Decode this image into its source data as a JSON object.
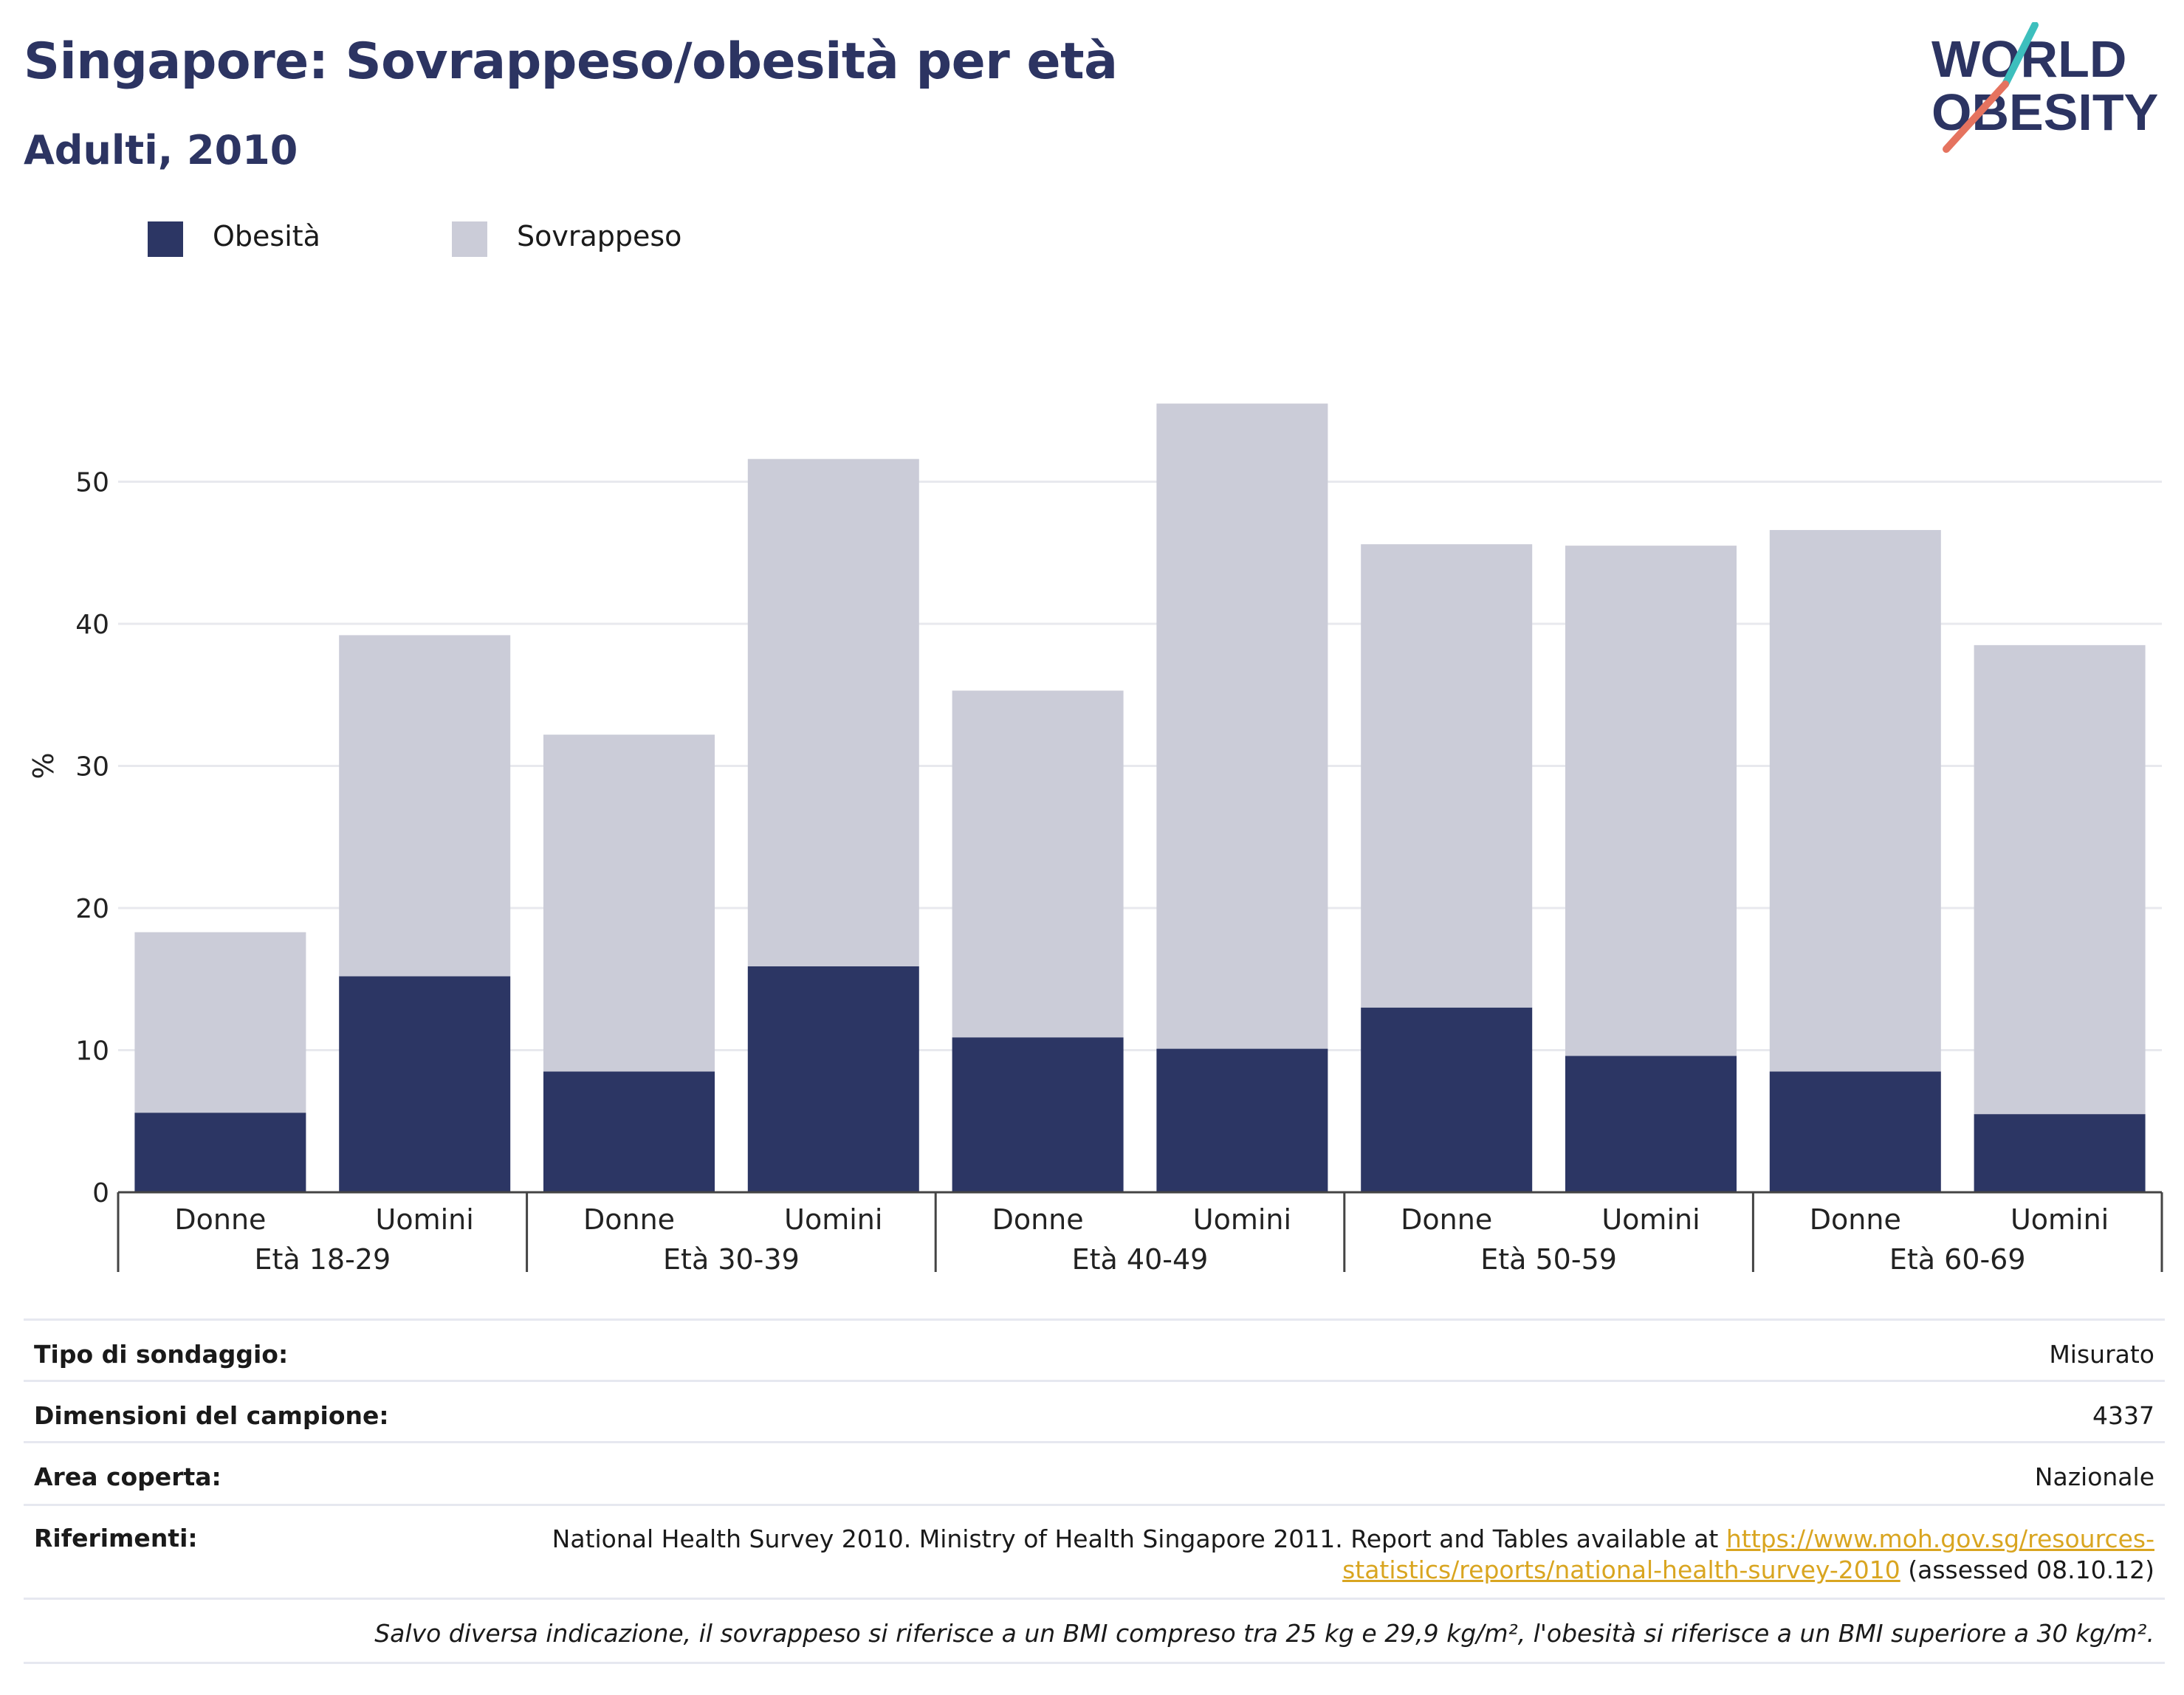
{
  "header": {
    "title": "Singapore: Sovrappeso/obesità per età",
    "subtitle": "Adulti, 2010"
  },
  "logo": {
    "line1": "WORLD",
    "line2": "OBESITY"
  },
  "colors": {
    "obesity": "#2c3664",
    "overweight": "#cbccd8",
    "grid": "#e8e9ee",
    "axis": "#444444",
    "title": "#2c3462",
    "link": "#d9a520"
  },
  "chart_data": {
    "type": "bar",
    "stacked": true,
    "groups": [
      "Età 18-29",
      "Età 30-39",
      "Età 40-49",
      "Età 50-59",
      "Età 60-69"
    ],
    "categories": [
      "Donne",
      "Uomini",
      "Donne",
      "Uomini",
      "Donne",
      "Uomini",
      "Donne",
      "Uomini",
      "Donne",
      "Uomini"
    ],
    "series": [
      {
        "name": "Obesità",
        "values": [
          5.6,
          15.2,
          8.5,
          15.9,
          10.9,
          10.1,
          13.0,
          9.6,
          8.5,
          5.5
        ]
      },
      {
        "name": "Sovrappeso",
        "values": [
          12.7,
          24.0,
          23.7,
          35.7,
          24.4,
          45.4,
          32.6,
          35.9,
          38.1,
          33.0
        ]
      }
    ],
    "ylabel": "%",
    "xlabel": "",
    "ylim": [
      0,
      57
    ],
    "yticks": [
      0,
      10,
      20,
      30,
      40,
      50
    ],
    "grid": true,
    "legend_position": "top-left"
  },
  "meta": {
    "survey_label": "Tipo di sondaggio:",
    "survey_value": "Misurato",
    "sample_label": "Dimensioni del campione:",
    "sample_value": "4337",
    "area_label": "Area coperta:",
    "area_value": "Nazionale",
    "refs_label": "Riferimenti:",
    "refs_text1": "National Health Survey 2010. Ministry of Health Singapore 2011. Report and Tables available at ",
    "refs_link1": "https://www.moh.gov.sg/resources-",
    "refs_link2": "statistics/reports/national-health-survey-2010",
    "refs_text2": " (assessed 08.10.12)",
    "note": "Salvo diversa indicazione, il sovrappeso si riferisce a un BMI compreso tra 25 kg e 29,9 kg/m², l'obesità si riferisce a un BMI superiore a 30 kg/m²."
  }
}
